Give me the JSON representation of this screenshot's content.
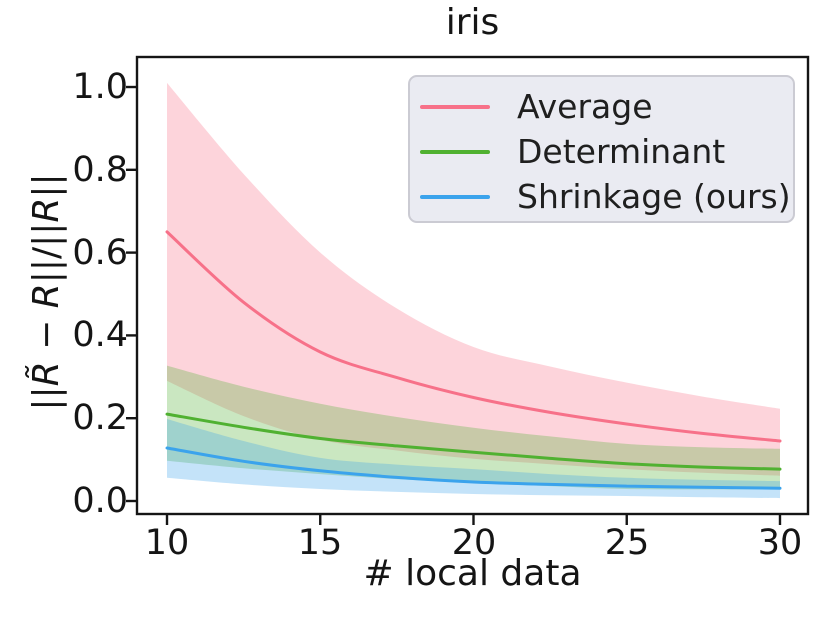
{
  "title": "iris",
  "colors": {
    "average": "#f77189",
    "determinant": "#50b131",
    "shrinkage": "#3ba3ec",
    "band_alpha": 0.3,
    "legend_background": "#eaebf2",
    "legend_border": "#cbcbd3",
    "axis_color": "#151515"
  },
  "legend": {
    "position": "upper right",
    "entries": [
      "Average",
      "Determinant",
      "Shrinkage (ours)"
    ]
  },
  "chart_data": {
    "type": "line",
    "title": "iris",
    "xlabel": "# local data",
    "ylabel": "||R̃ − R||/||R||",
    "ylabel_segments": [
      {
        "t": "||"
      },
      {
        "t": "R̃",
        "italic": true
      },
      {
        "t": " − "
      },
      {
        "t": "R",
        "italic": true
      },
      {
        "t": "||/||"
      },
      {
        "t": "R",
        "italic": true
      },
      {
        "t": "||"
      }
    ],
    "x": [
      10,
      12.5,
      15,
      17.5,
      20,
      22.5,
      25,
      27.5,
      30
    ],
    "series": [
      {
        "name": "Average",
        "color": "#f77189",
        "values": [
          0.65,
          0.48,
          0.36,
          0.298,
          0.25,
          0.214,
          0.186,
          0.163,
          0.145
        ],
        "band_upper": [
          1.01,
          0.79,
          0.6,
          0.465,
          0.372,
          0.325,
          0.286,
          0.252,
          0.223
        ],
        "band_lower": [
          0.29,
          0.205,
          0.148,
          0.122,
          0.102,
          0.089,
          0.077,
          0.068,
          0.061
        ]
      },
      {
        "name": "Determinant",
        "color": "#50b131",
        "values": [
          0.21,
          0.178,
          0.151,
          0.133,
          0.118,
          0.103,
          0.09,
          0.082,
          0.077
        ],
        "band_upper": [
          0.327,
          0.276,
          0.235,
          0.203,
          0.177,
          0.156,
          0.138,
          0.13,
          0.126
        ],
        "band_lower": [
          0.097,
          0.079,
          0.065,
          0.053,
          0.044,
          0.036,
          0.029,
          0.028,
          0.028
        ]
      },
      {
        "name": "Shrinkage (ours)",
        "color": "#3ba3ec",
        "values": [
          0.128,
          0.096,
          0.073,
          0.057,
          0.046,
          0.04,
          0.036,
          0.033,
          0.031
        ],
        "band_upper": [
          0.198,
          0.145,
          0.104,
          0.088,
          0.077,
          0.065,
          0.056,
          0.051,
          0.048
        ],
        "band_lower": [
          0.056,
          0.04,
          0.029,
          0.022,
          0.017,
          0.014,
          0.012,
          0.009,
          0.007
        ]
      }
    ],
    "xticks": [
      10,
      15,
      20,
      25,
      30
    ],
    "xtick_labels": [
      "10",
      "15",
      "20",
      "25",
      "30"
    ],
    "yticks": [
      0.0,
      0.2,
      0.4,
      0.6,
      0.8,
      1.0
    ],
    "ytick_labels": [
      "0.0",
      "0.2",
      "0.4",
      "0.6",
      "0.8",
      "1.0"
    ],
    "xlim": [
      9.021,
      30.914
    ],
    "ylim": [
      -0.0314,
      1.0725
    ],
    "grid": false,
    "band_alpha": 0.3,
    "legend_position": "upper right"
  }
}
